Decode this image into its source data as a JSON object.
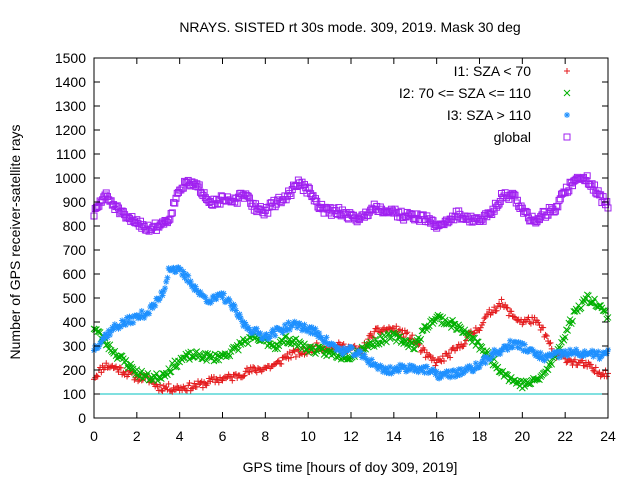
{
  "chart_data": {
    "type": "scatter",
    "title": "NRAYS. SISTED rt 30s mode. 309, 2019. Mask 30 deg",
    "xlabel": "GPS time [hours of doy 309, 2019]",
    "ylabel": "Number of GPS receiver-satellite rays",
    "xlim": [
      0,
      24
    ],
    "ylim": [
      0,
      1500
    ],
    "x_ticks": [
      0,
      2,
      4,
      6,
      8,
      10,
      12,
      14,
      16,
      18,
      20,
      22,
      24
    ],
    "y_ticks": [
      0,
      100,
      200,
      300,
      400,
      500,
      600,
      700,
      800,
      900,
      1000,
      1100,
      1200,
      1300,
      1400,
      1500
    ],
    "reference_line": {
      "y": 100,
      "color": "#00c0c0"
    },
    "legend_position": "top-right",
    "series": [
      {
        "name": "I1: SZA < 70",
        "marker": "+",
        "color": "#e41a1c",
        "x": [
          0,
          0.5,
          1,
          1.5,
          2,
          2.5,
          3,
          3.5,
          4,
          4.5,
          5,
          5.5,
          6,
          6.5,
          7,
          7.5,
          8,
          8.5,
          9,
          9.5,
          10,
          10.5,
          11,
          11.5,
          12,
          12.5,
          13,
          13.5,
          14,
          14.5,
          15,
          15.5,
          16,
          16.5,
          17,
          17.5,
          18,
          18.5,
          19,
          19.5,
          20,
          20.5,
          21,
          21.5,
          22,
          22.5,
          23,
          23.5,
          24
        ],
        "values": [
          170,
          220,
          210,
          190,
          170,
          165,
          130,
          125,
          125,
          130,
          140,
          155,
          165,
          170,
          190,
          200,
          210,
          220,
          260,
          270,
          280,
          300,
          290,
          300,
          290,
          280,
          350,
          370,
          370,
          350,
          320,
          260,
          230,
          260,
          290,
          340,
          380,
          440,
          480,
          430,
          400,
          410,
          360,
          260,
          250,
          230,
          220,
          190,
          190
        ]
      },
      {
        "name": "I2: 70 <= SZA <= 110",
        "marker": "x",
        "color": "#00b000",
        "x": [
          0,
          0.5,
          1,
          1.5,
          2,
          2.5,
          3,
          3.5,
          4,
          4.5,
          5,
          5.5,
          6,
          6.5,
          7,
          7.5,
          8,
          8.5,
          9,
          9.5,
          10,
          10.5,
          11,
          11.5,
          12,
          12.5,
          13,
          13.5,
          14,
          14.5,
          15,
          15.5,
          16,
          16.5,
          17,
          17.5,
          18,
          18.5,
          19,
          19.5,
          20,
          20.5,
          21,
          21.5,
          22,
          22.5,
          23,
          23.5,
          24
        ],
        "values": [
          380,
          320,
          270,
          230,
          190,
          170,
          170,
          200,
          240,
          260,
          260,
          250,
          260,
          280,
          320,
          330,
          320,
          300,
          330,
          310,
          290,
          280,
          270,
          260,
          260,
          290,
          310,
          330,
          340,
          320,
          300,
          380,
          420,
          400,
          380,
          340,
          300,
          250,
          200,
          160,
          140,
          150,
          180,
          250,
          350,
          450,
          500,
          480,
          420
        ]
      },
      {
        "name": "I3: SZA > 110",
        "marker": "*",
        "color": "#1e90ff",
        "x": [
          0,
          0.5,
          1,
          1.5,
          2,
          2.5,
          3,
          3.3,
          3.5,
          4,
          4.5,
          5,
          5.5,
          6,
          6.5,
          7,
          7.5,
          8,
          8.5,
          9,
          9.5,
          10,
          10.5,
          11,
          11.5,
          12,
          12.5,
          13,
          13.5,
          14,
          14.5,
          15,
          15.5,
          16,
          16.5,
          17,
          17.5,
          18,
          18.5,
          19,
          19.5,
          20,
          20.5,
          21,
          21.5,
          22,
          22.5,
          23,
          23.5,
          24
        ],
        "values": [
          290,
          340,
          380,
          400,
          420,
          440,
          490,
          540,
          630,
          610,
          570,
          510,
          490,
          510,
          460,
          390,
          360,
          340,
          360,
          380,
          390,
          370,
          350,
          310,
          280,
          280,
          260,
          230,
          200,
          200,
          210,
          210,
          200,
          180,
          180,
          190,
          200,
          220,
          260,
          280,
          310,
          300,
          270,
          250,
          260,
          270,
          270,
          270,
          260,
          270
        ]
      },
      {
        "name": "global",
        "marker": "square",
        "color": "#a020f0",
        "x": [
          0,
          0.5,
          1,
          1.5,
          2,
          2.5,
          3,
          3.5,
          4,
          4.5,
          5,
          5.5,
          6,
          6.5,
          7,
          7.5,
          8,
          8.5,
          9,
          9.5,
          10,
          10.5,
          11,
          11.5,
          12,
          12.5,
          13,
          13.5,
          14,
          14.5,
          15,
          15.5,
          16,
          16.5,
          17,
          17.5,
          18,
          18.5,
          19,
          19.5,
          20,
          20.5,
          21,
          21.5,
          22,
          22.5,
          23,
          23.5,
          24
        ],
        "values": [
          850,
          930,
          880,
          830,
          820,
          790,
          800,
          830,
          960,
          980,
          950,
          900,
          910,
          900,
          930,
          880,
          860,
          900,
          920,
          980,
          950,
          880,
          860,
          860,
          840,
          830,
          880,
          870,
          860,
          840,
          840,
          830,
          800,
          820,
          850,
          830,
          820,
          850,
          920,
          930,
          870,
          820,
          850,
          870,
          940,
          1000,
          1000,
          940,
          880
        ]
      }
    ]
  }
}
